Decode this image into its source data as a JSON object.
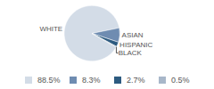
{
  "chart_data": {
    "type": "pie",
    "categories": [
      "WHITE",
      "ASIAN",
      "HISPANIC",
      "BLACK"
    ],
    "values": [
      88.5,
      8.3,
      2.7,
      0.5
    ],
    "value_labels": [
      "88.5%",
      "8.3%",
      "2.7%",
      "0.5%"
    ],
    "colors": [
      "#d3dce7",
      "#6f8cb1",
      "#2d5b80",
      "#a8b7c9"
    ]
  }
}
